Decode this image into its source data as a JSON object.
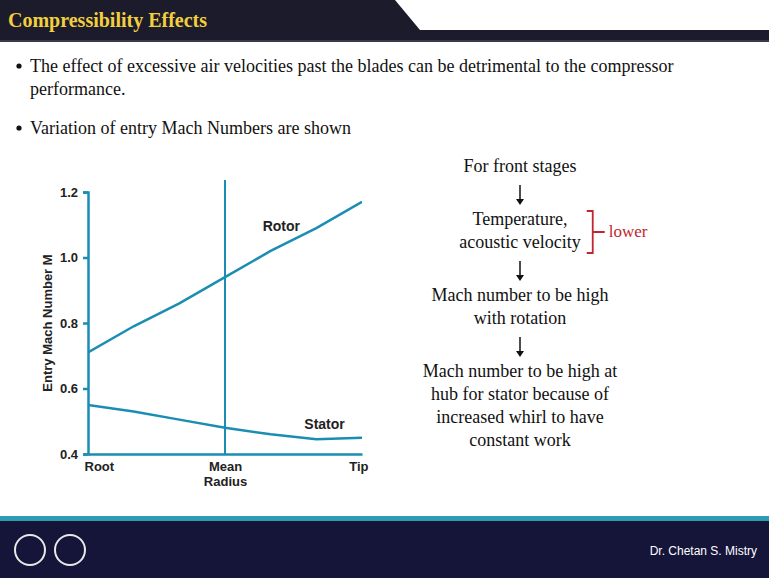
{
  "header": {
    "title": "Compressibility Effects"
  },
  "bullets": [
    {
      "lines": [
        "The effect of excessive air velocities past the blades can be detrimental to the compressor",
        "performance."
      ]
    },
    {
      "lines": [
        "Variation of entry Mach Numbers are shown"
      ]
    }
  ],
  "flow": [
    {
      "lines": [
        "For front stages"
      ]
    },
    {
      "lines": [
        "Temperature,",
        "acoustic velocity"
      ],
      "note": "lower"
    },
    {
      "lines": [
        "Mach number to be high",
        "with rotation"
      ]
    },
    {
      "lines": [
        "Mach number to be high at",
        "hub for stator because of",
        "increased whirl to have",
        "constant work"
      ]
    }
  ],
  "footer": {
    "presenter": "Dr. Chetan S. Mistry"
  },
  "chart_data": {
    "type": "line",
    "y_label": "Entry Mach Number M",
    "categories": [
      "Root",
      null,
      null,
      "Mean Radius",
      null,
      null,
      "Tip"
    ],
    "ylim": [
      0.4,
      1.2
    ],
    "yticks": [
      0.4,
      0.6,
      0.8,
      {
        "value": 1,
        "label": "1.0"
      },
      1.2
    ],
    "series": [
      {
        "name": "Rotor",
        "color": "#1b8db3",
        "values": [
          0.71,
          0.79,
          0.86,
          0.94,
          1.02,
          1.09,
          1.17
        ]
      },
      {
        "name": "Stator",
        "color": "#1b8db3",
        "values": [
          0.55,
          0.53,
          0.505,
          0.48,
          0.46,
          0.445,
          0.45
        ]
      }
    ]
  }
}
